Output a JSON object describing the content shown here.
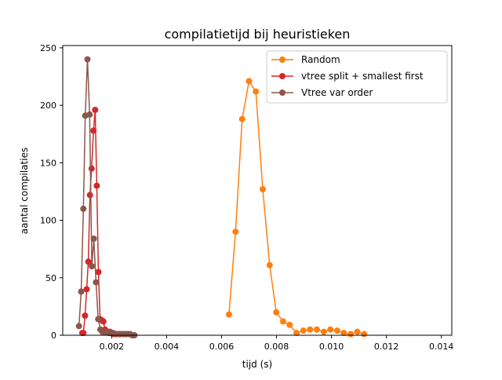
{
  "chart_data": {
    "type": "line",
    "title": "compilatietijd bij heuristieken",
    "xlabel": "tijd (s)",
    "ylabel": "aantal compilaties",
    "xlim": [
      0.00022,
      0.01438
    ],
    "ylim": [
      0,
      252
    ],
    "xticks": [
      {
        "value": 0.002,
        "label": "0.002"
      },
      {
        "value": 0.004,
        "label": "0.004"
      },
      {
        "value": 0.006,
        "label": "0.006"
      },
      {
        "value": 0.008,
        "label": "0.008"
      },
      {
        "value": 0.01,
        "label": "0.010"
      },
      {
        "value": 0.012,
        "label": "0.012"
      },
      {
        "value": 0.014,
        "label": "0.014"
      }
    ],
    "yticks": [
      {
        "value": 0,
        "label": "0"
      },
      {
        "value": 50,
        "label": "50"
      },
      {
        "value": 100,
        "label": "100"
      },
      {
        "value": 150,
        "label": "150"
      },
      {
        "value": 200,
        "label": "200"
      },
      {
        "value": 250,
        "label": "250"
      }
    ],
    "grid": false,
    "legend_position": "top-right",
    "series": [
      {
        "name": "Random",
        "color": "#ff7f0e",
        "x": [
          0.00627,
          0.00651,
          0.00675,
          0.007,
          0.00725,
          0.0075,
          0.00775,
          0.00799,
          0.00824,
          0.00848,
          0.00873,
          0.00898,
          0.00922,
          0.00947,
          0.00972,
          0.00996,
          0.01021,
          0.01045,
          0.0107,
          0.01094,
          0.01119
        ],
        "y": [
          18,
          90,
          188,
          221,
          212,
          127,
          61,
          20,
          12,
          9,
          2,
          4,
          5,
          5,
          3,
          5,
          4,
          2,
          1,
          3,
          1
        ]
      },
      {
        "name": "vtree split + smallest first",
        "color": "#d62728",
        "x": [
          0.00093,
          0.00097,
          0.00103,
          0.00109,
          0.00115,
          0.00121,
          0.00127,
          0.00134,
          0.0014,
          0.00146,
          0.00152,
          0.00158,
          0.00164,
          0.0017,
          0.00176,
          0.00182,
          0.00188,
          0.00194,
          0.002,
          0.00208,
          0.00216,
          0.00225
        ],
        "y": [
          2,
          2,
          17,
          40,
          64,
          122,
          145,
          178,
          196,
          130,
          55,
          14,
          13,
          12,
          5,
          3,
          3,
          3,
          2,
          1,
          1,
          1
        ]
      },
      {
        "name": "Vtree var order",
        "color": "#8c564b",
        "x": [
          0.00081,
          0.00089,
          0.00097,
          0.00104,
          0.00112,
          0.0012,
          0.00128,
          0.00135,
          0.00143,
          0.00151,
          0.00159,
          0.00166,
          0.00174,
          0.00182,
          0.0019,
          0.00198,
          0.00205,
          0.00213,
          0.00221,
          0.00229,
          0.00236,
          0.00244,
          0.00252,
          0.0026,
          0.00267,
          0.00275,
          0.00283
        ],
        "y": [
          8,
          38,
          110,
          191,
          240,
          192,
          60,
          84,
          46,
          14,
          5,
          3,
          3,
          3,
          2,
          2,
          2,
          1,
          1,
          1,
          1,
          1,
          1,
          1,
          1,
          0,
          0
        ]
      }
    ]
  }
}
